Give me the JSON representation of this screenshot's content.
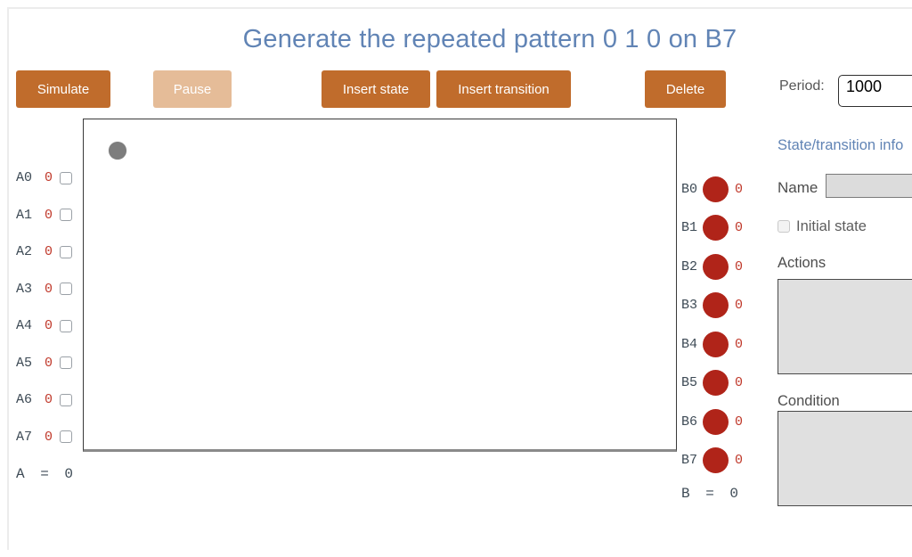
{
  "title": "Generate the repeated pattern 0 1 0 on B7",
  "toolbar": {
    "simulate_label": "Simulate",
    "pause_label": "Pause",
    "insert_state_label": "Insert state",
    "insert_transition_label": "Insert transition",
    "delete_label": "Delete",
    "period_label": "Period:",
    "period_value": "1000"
  },
  "inputs_a": {
    "rows": [
      {
        "label": "A0",
        "value": "0"
      },
      {
        "label": "A1",
        "value": "0"
      },
      {
        "label": "A2",
        "value": "0"
      },
      {
        "label": "A3",
        "value": "0"
      },
      {
        "label": "A4",
        "value": "0"
      },
      {
        "label": "A5",
        "value": "0"
      },
      {
        "label": "A6",
        "value": "0"
      },
      {
        "label": "A7",
        "value": "0"
      }
    ],
    "sum": "A = 0"
  },
  "outputs_b": {
    "rows": [
      {
        "label": "B0",
        "value": "0"
      },
      {
        "label": "B1",
        "value": "0"
      },
      {
        "label": "B2",
        "value": "0"
      },
      {
        "label": "B3",
        "value": "0"
      },
      {
        "label": "B4",
        "value": "0"
      },
      {
        "label": "B5",
        "value": "0"
      },
      {
        "label": "B6",
        "value": "0"
      },
      {
        "label": "B7",
        "value": "0"
      }
    ],
    "sum": "B = 0"
  },
  "panel": {
    "heading": "State/transition info",
    "name_label": "Name",
    "name_value": "",
    "initial_state_label": "Initial state",
    "actions_label": "Actions",
    "actions_value": "",
    "condition_label": "Condition",
    "condition_value": ""
  },
  "colors": {
    "button_orange": "#c06c2c",
    "button_disabled": "#e5bc98",
    "title_blue": "#6184b5",
    "led_red": "#b02419",
    "value_red": "#c0392b",
    "label_slate": "#3d4a55"
  }
}
